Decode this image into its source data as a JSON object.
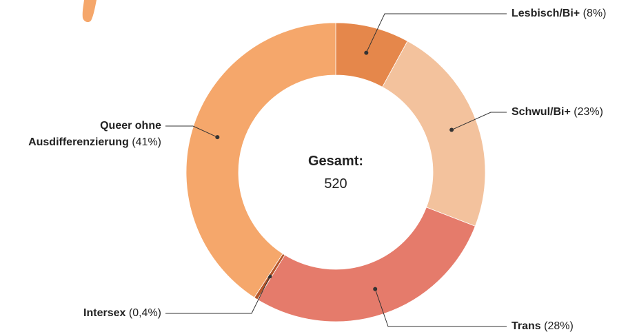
{
  "chart_data": {
    "type": "donut",
    "categories": [
      "Lesbisch/Bi+",
      "Schwul/Bi+",
      "Trans",
      "Intersex",
      "Queer ohne Ausdifferenzierung"
    ],
    "values": [
      8,
      23,
      28,
      0.4,
      41
    ],
    "value_labels": [
      "(8%)",
      "(23%)",
      "(28%)",
      "(0,4%)",
      "(41%)"
    ],
    "colors": [
      "#e5874b",
      "#f3c29d",
      "#e57b6b",
      "#b5562a",
      "#f5a76b"
    ],
    "total_label": "Gesamt:",
    "total": 520
  }
}
